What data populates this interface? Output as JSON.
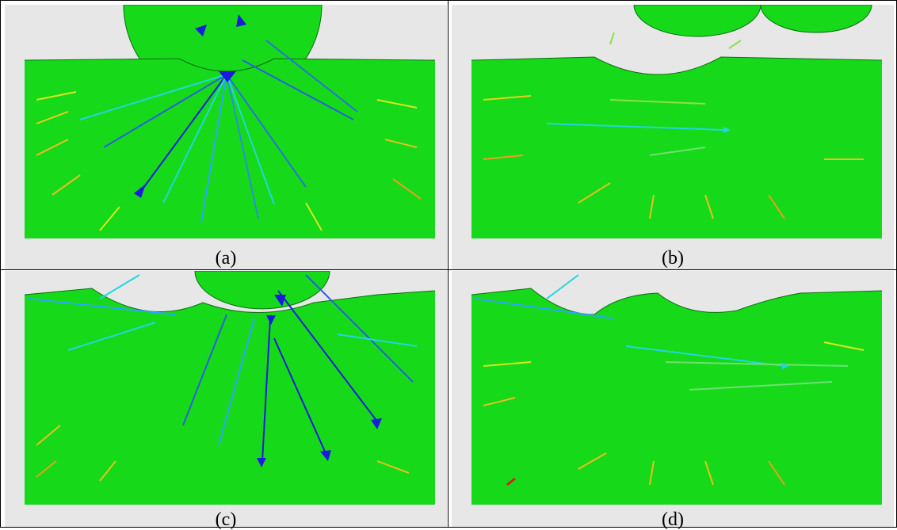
{
  "figure": {
    "panels": [
      {
        "id": "a",
        "caption": "(a)"
      },
      {
        "id": "b",
        "caption": "(b)"
      },
      {
        "id": "c",
        "caption": "(c)"
      },
      {
        "id": "d",
        "caption": "(d)"
      }
    ],
    "colors": {
      "background": "#e7e7e7",
      "material": "#16d91a",
      "material_edge": "#0e9e12",
      "arrow_high": "#1b1bdc",
      "arrow_mid": "#2aa6ff",
      "arrow_cyan": "#22e0e0",
      "arrow_low": "#d7e81e",
      "arrow_lowest": "#e88a1e"
    }
  }
}
